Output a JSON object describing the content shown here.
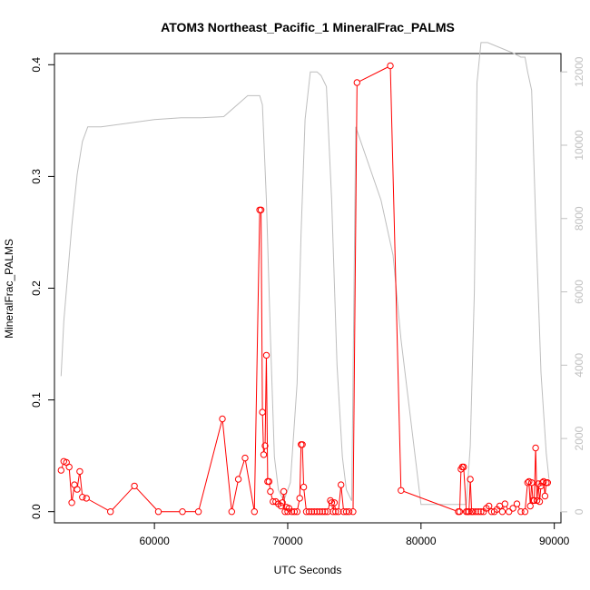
{
  "chart_data": {
    "type": "line",
    "title": "ATOM3 Northeast_Pacific_1 MineralFrac_PALMS",
    "xlabel": "UTC Seconds",
    "ylabel": "MineralFrac_PALMS",
    "xlim": [
      52500,
      90500
    ],
    "ylim": [
      -0.01,
      0.41
    ],
    "y2lim": [
      -300,
      12500
    ],
    "x_ticks": [
      "60000",
      "70000",
      "80000",
      "90000"
    ],
    "y_ticks": [
      "0.0",
      "0.1",
      "0.2",
      "0.3",
      "0.4"
    ],
    "y2_ticks": [
      "0",
      "2000",
      "4000",
      "6000",
      "8000",
      "10000",
      "12000"
    ],
    "colors": {
      "mineral": "#ff0000",
      "altitude": "#bebebe"
    },
    "series": [
      {
        "role": "mineral",
        "marker": "open-circle",
        "x": [
          53000,
          53200,
          53400,
          53600,
          53800,
          54000,
          54200,
          54400,
          54600,
          54900,
          56700,
          58500,
          60300,
          62100,
          63300,
          65100,
          65800,
          66300,
          66800,
          67500,
          67900,
          68000,
          68100,
          68200,
          68300,
          68400,
          68500,
          68600,
          68700,
          68900,
          69100,
          69300,
          69500,
          69600,
          69700,
          69800,
          69900,
          70000,
          70100,
          70300,
          70500,
          70700,
          70900,
          71000,
          71100,
          71200,
          71400,
          71600,
          71800,
          72000,
          72200,
          72400,
          72600,
          72800,
          73000,
          73200,
          73300,
          73400,
          73500,
          73600,
          73800,
          74000,
          74200,
          74400,
          74600,
          74900,
          75200,
          77700,
          78500,
          82800,
          82900,
          83000,
          83100,
          83200,
          83400,
          83500,
          83600,
          83700,
          83800,
          83900,
          84100,
          84300,
          84500,
          84700,
          84900,
          85100,
          85300,
          85500,
          85700,
          85900,
          86100,
          86300,
          86600,
          86900,
          87200,
          87500,
          87800,
          88000,
          88100,
          88200,
          88300,
          88400,
          88500,
          88600,
          88700,
          88800,
          88900,
          89000,
          89100,
          89200,
          89300,
          89400,
          89500
        ],
        "y": [
          0.037,
          0.045,
          0.044,
          0.04,
          0.008,
          0.024,
          0.02,
          0.036,
          0.013,
          0.012,
          0.0,
          0.023,
          0.0,
          0.0,
          0.0,
          0.083,
          0.0,
          0.029,
          0.048,
          0.0,
          0.27,
          0.27,
          0.089,
          0.051,
          0.059,
          0.14,
          0.027,
          0.027,
          0.018,
          0.009,
          0.009,
          0.007,
          0.005,
          0.008,
          0.018,
          0.0,
          0.004,
          0.0,
          0.003,
          0.0,
          0.0,
          0.0,
          0.012,
          0.06,
          0.06,
          0.022,
          0.0,
          0.0,
          0.0,
          0.0,
          0.0,
          0.0,
          0.0,
          0.0,
          0.0,
          0.01,
          0.008,
          0.0,
          0.008,
          0.0,
          0.0,
          0.024,
          0.0,
          0.0,
          0.0,
          0.0,
          0.384,
          0.399,
          0.019,
          0.0,
          0.0,
          0.038,
          0.04,
          0.04,
          0.0,
          0.0,
          0.0,
          0.029,
          0.0,
          0.0,
          0.0,
          0.0,
          0.0,
          0.0,
          0.003,
          0.005,
          0.0,
          0.0,
          0.002,
          0.005,
          0.0,
          0.007,
          0.0,
          0.003,
          0.007,
          0.0,
          0.0,
          0.026,
          0.027,
          0.005,
          0.026,
          0.01,
          0.01,
          0.057,
          0.01,
          0.025,
          0.009,
          0.023,
          0.026,
          0.027,
          0.014,
          0.026,
          0.026
        ]
      },
      {
        "role": "altitude",
        "x": [
          53000,
          53200,
          53500,
          53800,
          54200,
          54600,
          55000,
          56000,
          57000,
          58000,
          59000,
          60000,
          62000,
          63500,
          65200,
          67000,
          67600,
          67900,
          68100,
          68400,
          68700,
          69000,
          69300,
          69700,
          70200,
          70700,
          71000,
          71300,
          71700,
          72200,
          72500,
          72900,
          73300,
          73700,
          74100,
          74400,
          74800,
          75100,
          77000,
          77900,
          78500,
          80000,
          82500,
          82800,
          83100,
          83400,
          83700,
          84000,
          84200,
          84500,
          85000,
          87000,
          87500,
          87800,
          88000,
          88300,
          88600,
          89000,
          89400,
          89600
        ],
        "y": [
          3700,
          5200,
          6500,
          7800,
          9200,
          10100,
          10500,
          10500,
          10550,
          10600,
          10650,
          10700,
          10750,
          10750,
          10780,
          11350,
          11350,
          11350,
          11100,
          8500,
          4800,
          1500,
          600,
          300,
          800,
          3500,
          7600,
          10700,
          12000,
          12000,
          11900,
          11600,
          8500,
          4000,
          1500,
          600,
          300,
          10500,
          8500,
          7000,
          4700,
          200,
          200,
          200,
          200,
          200,
          1800,
          6000,
          11700,
          12800,
          12800,
          12500,
          12400,
          12400,
          12000,
          11500,
          8000,
          3800,
          1600,
          900
        ]
      }
    ]
  }
}
